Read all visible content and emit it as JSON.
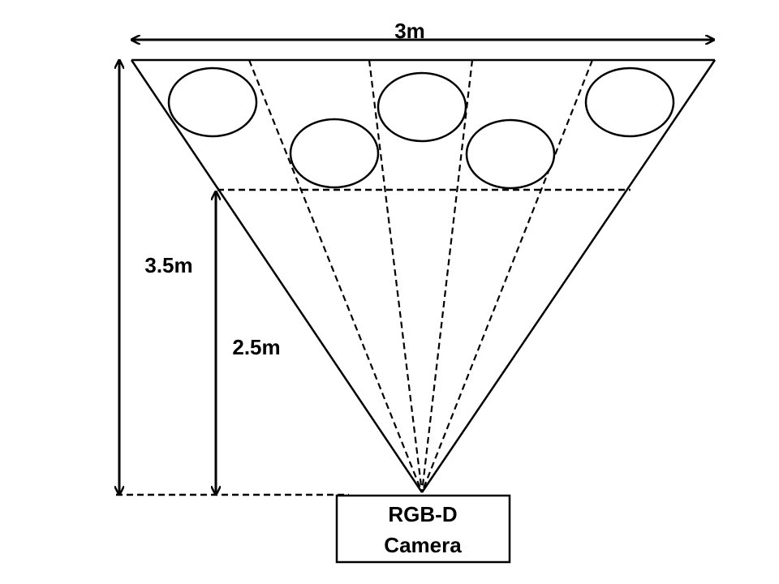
{
  "labels": {
    "width": "3m",
    "total_height": "3.5m",
    "inner_height": "2.5m"
  },
  "camera": {
    "line1": "RGB-D",
    "line2": "Camera"
  },
  "colors": {
    "stroke": "#000000",
    "background": "#ffffff"
  }
}
